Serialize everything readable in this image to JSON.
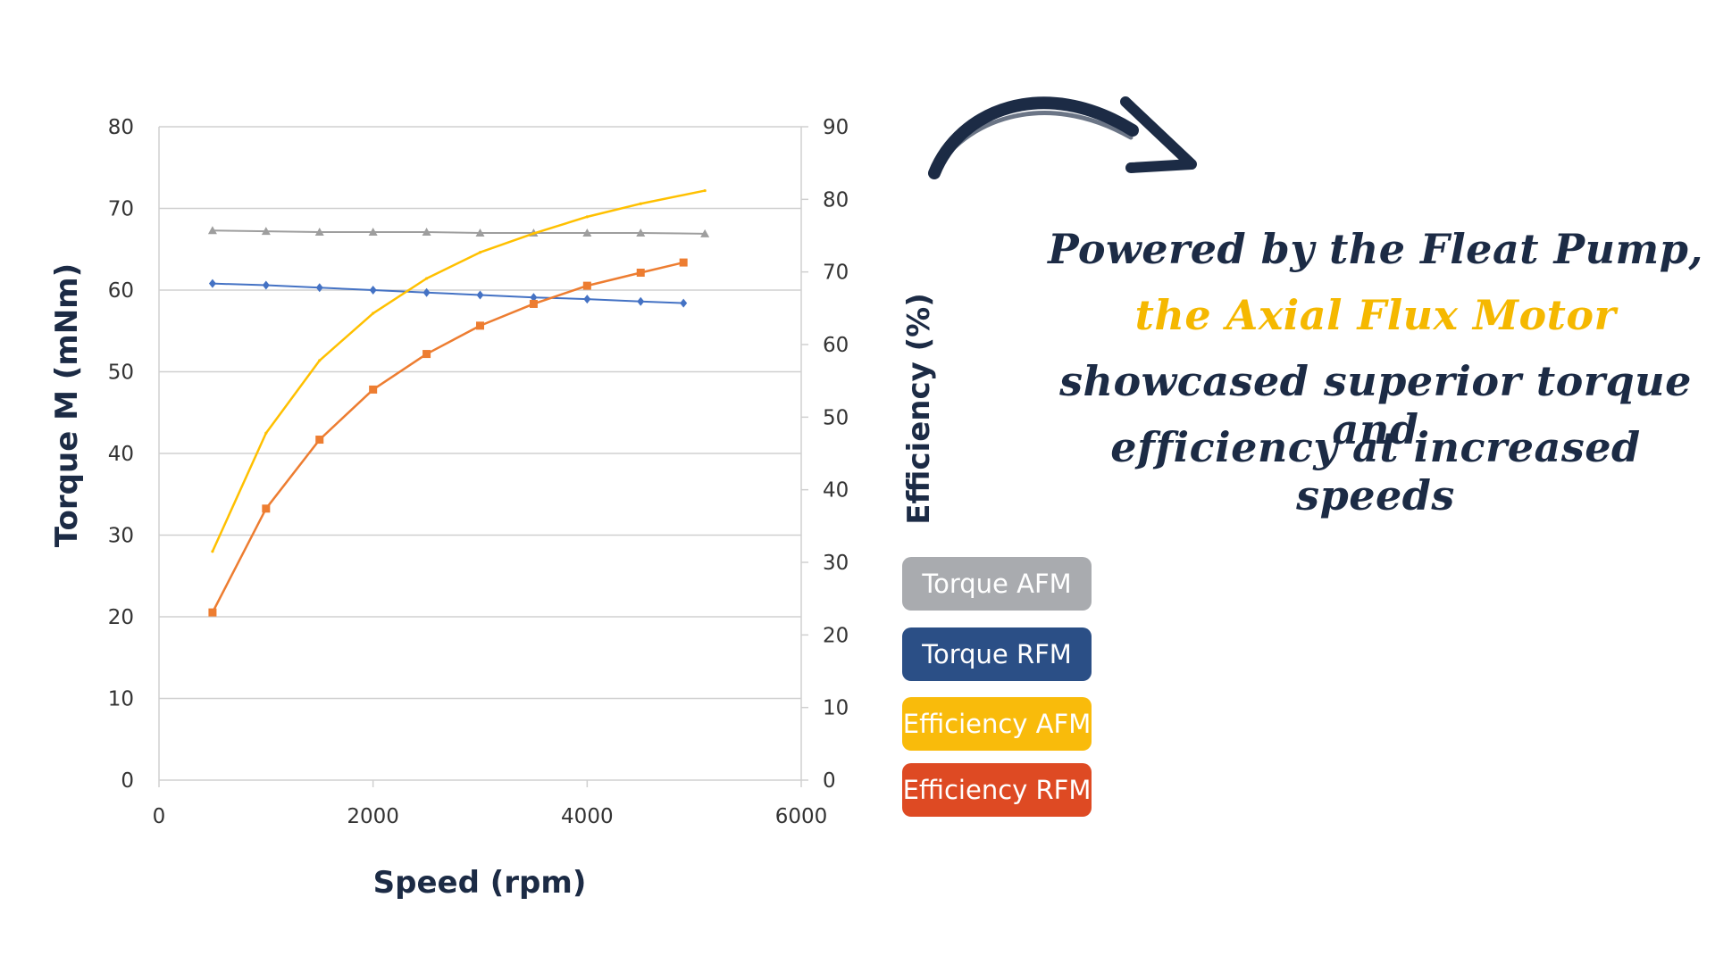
{
  "colors": {
    "torque_afm": "#9e9e9e",
    "torque_rfm": "#4472c4",
    "efficiency_afm": "#ffc000",
    "efficiency_rfm": "#ed7d31",
    "legend_torque_afm_bg": "#a9abaf",
    "legend_torque_rfm_bg": "#2b4f86",
    "legend_efficiency_afm_bg": "#f9bb0b",
    "legend_efficiency_rfm_bg": "#de4a23",
    "text_dark": "#1c2b45",
    "highlight": "#f5b800",
    "grid": "#d0d0d0"
  },
  "legend": [
    {
      "label": "Torque AFM",
      "color_key": "legend_torque_afm_bg"
    },
    {
      "label": "Torque RFM",
      "color_key": "legend_torque_rfm_bg"
    },
    {
      "label": "Efficiency AFM",
      "color_key": "legend_efficiency_afm_bg"
    },
    {
      "label": "Efficiency RFM",
      "color_key": "legend_efficiency_rfm_bg"
    }
  ],
  "headline": {
    "line1": "Powered by the Fleat Pump,",
    "line2": "the Axial Flux Motor",
    "line3": "showcased superior torque and",
    "line4": "efficiency at increased speeds"
  },
  "icons": {
    "arrow": "curved-arrow-icon"
  },
  "chart_data": {
    "type": "line",
    "xlabel": "Speed (rpm)",
    "ylabel": "Torque M (mNm)",
    "y2label": "Efficiency (%)",
    "xlim": [
      0,
      6000
    ],
    "ylim": [
      0,
      80
    ],
    "y2lim": [
      0,
      90
    ],
    "xticks": [
      0,
      2000,
      4000,
      6000
    ],
    "yticks": [
      0,
      10,
      20,
      30,
      40,
      50,
      60,
      70,
      80
    ],
    "y2ticks": [
      0,
      10,
      20,
      30,
      40,
      50,
      60,
      70,
      80,
      90
    ],
    "grid": true,
    "legend_position": "right",
    "series": [
      {
        "name": "Torque AFM",
        "axis": "left",
        "marker": "triangle",
        "color_key": "torque_afm",
        "x": [
          500,
          1000,
          1500,
          2000,
          2500,
          3000,
          3500,
          4000,
          4500,
          5100
        ],
        "values": [
          67.3,
          67.2,
          67.1,
          67.1,
          67.1,
          67.0,
          67.0,
          67.0,
          67.0,
          66.9
        ]
      },
      {
        "name": "Torque RFM",
        "axis": "left",
        "marker": "diamond",
        "color_key": "torque_rfm",
        "x": [
          500,
          1000,
          1500,
          2000,
          2500,
          3000,
          3500,
          4000,
          4500,
          4900
        ],
        "values": [
          60.8,
          60.6,
          60.3,
          60.0,
          59.7,
          59.4,
          59.1,
          58.9,
          58.6,
          58.4
        ]
      },
      {
        "name": "Efficiency AFM",
        "axis": "right",
        "marker": "none",
        "color_key": "efficiency_afm",
        "x": [
          500,
          1000,
          1500,
          2000,
          2500,
          3000,
          3500,
          4000,
          4500,
          5100
        ],
        "values": [
          31.5,
          47.8,
          57.8,
          64.3,
          69.1,
          72.7,
          75.3,
          77.6,
          79.4,
          81.2
        ]
      },
      {
        "name": "Efficiency RFM",
        "axis": "right",
        "marker": "square",
        "color_key": "efficiency_rfm",
        "x": [
          500,
          1000,
          1500,
          2000,
          2500,
          3000,
          3500,
          4000,
          4500,
          4900
        ],
        "values": [
          23.1,
          37.4,
          46.9,
          53.8,
          58.7,
          62.6,
          65.6,
          68.1,
          69.9,
          71.3
        ]
      }
    ]
  }
}
